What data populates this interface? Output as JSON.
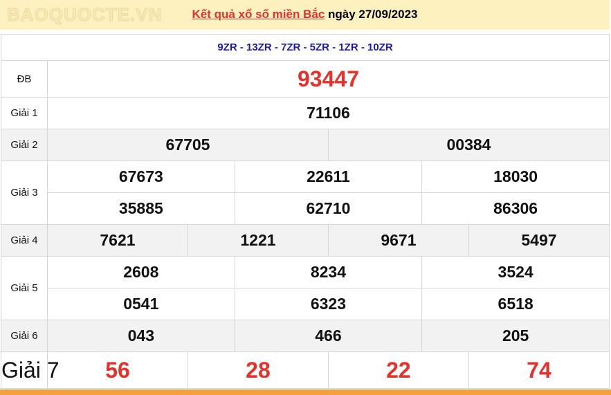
{
  "header": {
    "link": "Kết quả xổ số miền Bắc",
    "date_text": "ngày 27/09/2023"
  },
  "codes": "9ZR - 13ZR - 7ZR - 5ZR - 1ZR - 10ZR",
  "prizes": {
    "db": {
      "label": "ĐB",
      "numbers": [
        "93447"
      ]
    },
    "g1": {
      "label": "Giải 1",
      "numbers": [
        "71106"
      ]
    },
    "g2": {
      "label": "Giải 2",
      "numbers": [
        "67705",
        "00384"
      ]
    },
    "g3": {
      "label": "Giải 3",
      "numbers": [
        "67673",
        "22611",
        "18030",
        "35885",
        "62710",
        "86306"
      ]
    },
    "g4": {
      "label": "Giải 4",
      "numbers": [
        "7621",
        "1221",
        "9671",
        "5497"
      ]
    },
    "g5": {
      "label": "Giải 5",
      "numbers": [
        "2608",
        "8234",
        "3524",
        "0541",
        "6323",
        "6518"
      ]
    },
    "g6": {
      "label": "Giải 6",
      "numbers": [
        "043",
        "466",
        "205"
      ]
    },
    "g7": {
      "label": "Giải 7",
      "numbers": [
        "56",
        "28",
        "22",
        "74"
      ]
    }
  },
  "watermark": "BAOQUOCTE.VN",
  "colors": {
    "accent_red": "#e4312b",
    "code_blue": "#1b1ba8",
    "header_bg": "#fdf1bf",
    "bottom_bar": "#f4a03c"
  }
}
